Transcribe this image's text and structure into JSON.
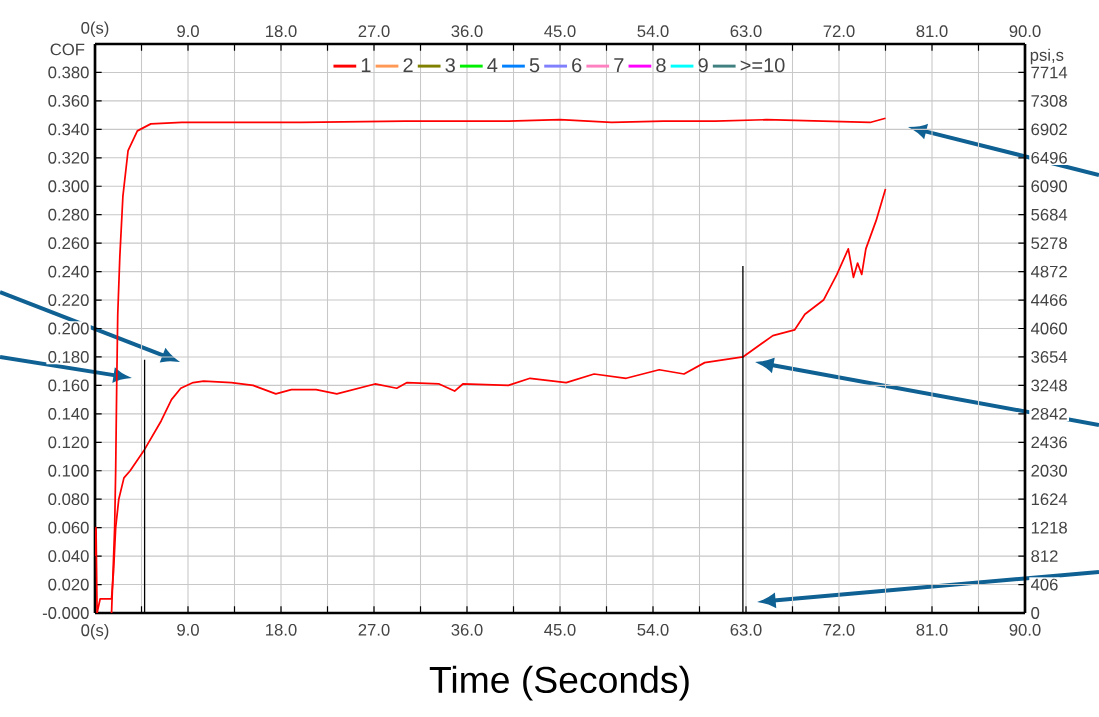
{
  "chart_data": {
    "type": "line",
    "xlabel": "Time (Seconds)",
    "ylabel": "COF",
    "y2label": "psi,s",
    "xlim": [
      0,
      90
    ],
    "ylim": [
      0,
      0.4
    ],
    "y2lim": [
      0,
      8120
    ],
    "x2lim": [
      0,
      90
    ],
    "xticks": [
      {
        "value": 0,
        "label": "0(s)"
      },
      {
        "value": 4.5,
        "label": null
      },
      {
        "value": 9,
        "label": "9.0"
      },
      {
        "value": 13.5,
        "label": null
      },
      {
        "value": 18,
        "label": "18.0"
      },
      {
        "value": 22.5,
        "label": null
      },
      {
        "value": 27,
        "label": "27.0"
      },
      {
        "value": 31.5,
        "label": null
      },
      {
        "value": 36,
        "label": "36.0"
      },
      {
        "value": 40.5,
        "label": null
      },
      {
        "value": 45,
        "label": "45.0"
      },
      {
        "value": 49.5,
        "label": null
      },
      {
        "value": 54,
        "label": "54.0"
      },
      {
        "value": 58.5,
        "label": null
      },
      {
        "value": 63,
        "label": "63.0"
      },
      {
        "value": 67.5,
        "label": null
      },
      {
        "value": 72,
        "label": "72.0"
      },
      {
        "value": 76.5,
        "label": null
      },
      {
        "value": 81,
        "label": "81.0"
      },
      {
        "value": 85.5,
        "label": null
      },
      {
        "value": 90,
        "label": "90.0"
      }
    ],
    "x2ticks": [
      {
        "value": 0,
        "label": "0(s)"
      },
      {
        "value": 4.5,
        "label": null
      },
      {
        "value": 9,
        "label": "9.0"
      },
      {
        "value": 13.5,
        "label": null
      },
      {
        "value": 18,
        "label": "18.0"
      },
      {
        "value": 22.5,
        "label": null
      },
      {
        "value": 27,
        "label": "27.0"
      },
      {
        "value": 31.5,
        "label": null
      },
      {
        "value": 36,
        "label": "36.0"
      },
      {
        "value": 40.5,
        "label": null
      },
      {
        "value": 45,
        "label": "45.0"
      },
      {
        "value": 49.5,
        "label": null
      },
      {
        "value": 54,
        "label": "54.0"
      },
      {
        "value": 58.5,
        "label": null
      },
      {
        "value": 63,
        "label": "63.0"
      },
      {
        "value": 67.5,
        "label": null
      },
      {
        "value": 72,
        "label": "72.0"
      },
      {
        "value": 76.5,
        "label": null
      },
      {
        "value": 81,
        "label": "81.0"
      },
      {
        "value": 85.5,
        "label": null
      },
      {
        "value": 90,
        "label": "90.0"
      }
    ],
    "yticks": [
      {
        "value": 0,
        "label": "-0.000"
      },
      {
        "value": 0.02,
        "label": "0.020"
      },
      {
        "value": 0.04,
        "label": "0.040"
      },
      {
        "value": 0.06,
        "label": "0.060"
      },
      {
        "value": 0.08,
        "label": "0.080"
      },
      {
        "value": 0.1,
        "label": "0.100"
      },
      {
        "value": 0.12,
        "label": "0.120"
      },
      {
        "value": 0.14,
        "label": "0.140"
      },
      {
        "value": 0.16,
        "label": "0.160"
      },
      {
        "value": 0.18,
        "label": "0.180"
      },
      {
        "value": 0.2,
        "label": "0.200"
      },
      {
        "value": 0.22,
        "label": "0.220"
      },
      {
        "value": 0.24,
        "label": "0.240"
      },
      {
        "value": 0.26,
        "label": "0.260"
      },
      {
        "value": 0.28,
        "label": "0.280"
      },
      {
        "value": 0.3,
        "label": "0.300"
      },
      {
        "value": 0.32,
        "label": "0.320"
      },
      {
        "value": 0.34,
        "label": "0.340"
      },
      {
        "value": 0.36,
        "label": "0.360"
      },
      {
        "value": 0.38,
        "label": "0.380"
      }
    ],
    "y2ticks": [
      0,
      406,
      812,
      1218,
      1624,
      2030,
      2436,
      2842,
      3248,
      3654,
      4060,
      4466,
      4872,
      5278,
      5684,
      6090,
      6496,
      6902,
      7308,
      7714
    ],
    "grid": true,
    "legend": "top",
    "series": [
      {
        "name": "1",
        "color": "#ff0000",
        "x": [
          0,
          0.1,
          0.2,
          0.5,
          1.6,
          1.8,
          2.0,
          2.3,
          2.8,
          3.4,
          4.8,
          6.4,
          7.4,
          8.3,
          9.5,
          10.5,
          13.2,
          15.3,
          17.5,
          19,
          21.4,
          23.4,
          27.1,
          29.2,
          30.2,
          33.3,
          34.8,
          35.6,
          40,
          42.1,
          45.6,
          48.3,
          51.4,
          54.6,
          57,
          59,
          62.7,
          65.6,
          67.7,
          68.7,
          70.5,
          71.8,
          72.9,
          73.4,
          73.8,
          74.2,
          74.6,
          75.6,
          76.5
        ],
        "values": [
          0.04,
          0.06,
          0.0,
          0.01,
          0.01,
          0.03,
          0.06,
          0.08,
          0.095,
          0.1,
          0.115,
          0.135,
          0.15,
          0.158,
          0.162,
          0.163,
          0.162,
          0.16,
          0.154,
          0.157,
          0.157,
          0.154,
          0.161,
          0.158,
          0.162,
          0.161,
          0.156,
          0.161,
          0.16,
          0.165,
          0.162,
          0.168,
          0.165,
          0.171,
          0.168,
          0.176,
          0.18,
          0.195,
          0.199,
          0.21,
          0.22,
          0.238,
          0.256,
          0.236,
          0.246,
          0.238,
          0.256,
          0.276,
          0.298
        ]
      },
      {
        "color": "#ff0000",
        "axis": "y2",
        "x": [
          1.6,
          1.7,
          1.9,
          2.0,
          2.1,
          2.2,
          2.4,
          2.7,
          3.2,
          4.1,
          5.4,
          8.4,
          20,
          30,
          40,
          45,
          50,
          55,
          60,
          65,
          70,
          75,
          76.5
        ],
        "values": [
          0,
          400,
          1220,
          2030,
          3250,
          4260,
          5080,
          5950,
          6600,
          6880,
          6980,
          7000,
          7000,
          7020,
          7020,
          7040,
          7000,
          7020,
          7020,
          7040,
          7020,
          7000,
          7060
        ]
      },
      {
        "color": "#000000",
        "x": [
          4.8,
          4.8
        ],
        "values": [
          0,
          0.178
        ]
      },
      {
        "color": "#000000",
        "x": [
          62.7,
          62.7
        ],
        "values": [
          0,
          0.244
        ]
      },
      {
        "name": "2",
        "color": "#ff9955"
      },
      {
        "name": "3",
        "color": "#808000"
      },
      {
        "name": "4",
        "color": "#00ee00"
      },
      {
        "name": "5",
        "color": "#0080ff"
      },
      {
        "name": "6",
        "color": "#8080ff"
      },
      {
        "name": "7",
        "color": "#ff80c0"
      },
      {
        "name": "8",
        "color": "#ff00ff"
      },
      {
        "name": "9",
        "color": "#00ffff"
      },
      {
        "name": ">=10",
        "color": "#408080"
      }
    ]
  }
}
